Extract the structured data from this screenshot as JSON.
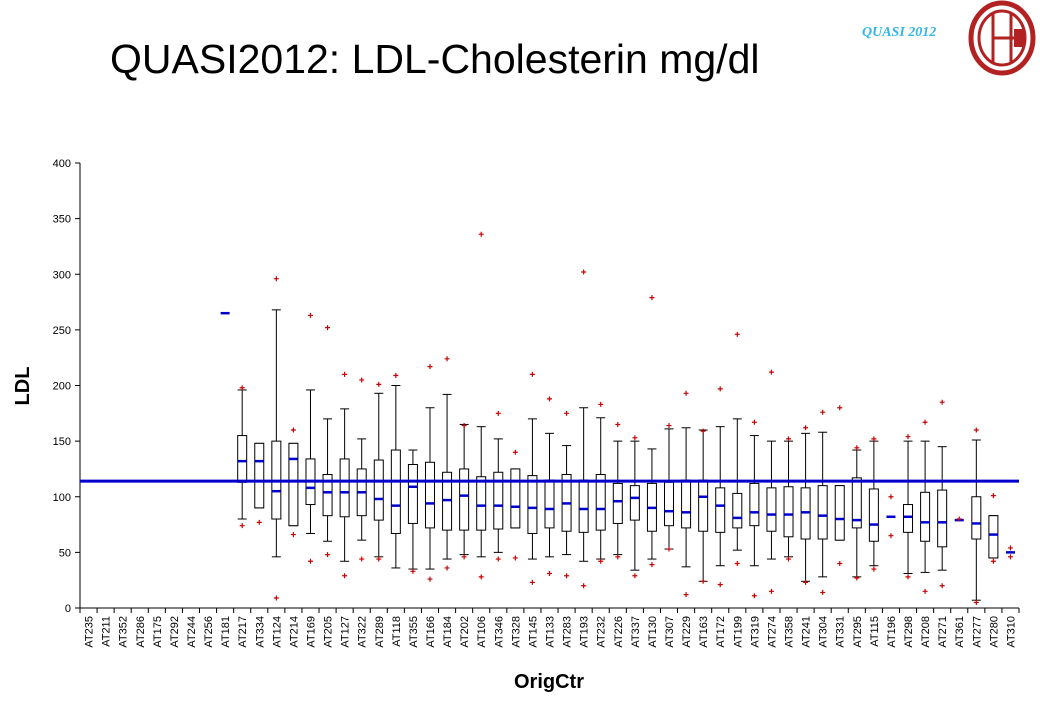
{
  "slide": {
    "title": "QUASI2012: LDL-Cholesterin mg/dl",
    "brand_text": "QUASI 2012"
  },
  "colors": {
    "box": "#000000",
    "median": "#0000cc",
    "reference_line": "#0000cc",
    "outlier": "#cc0000",
    "background": "#ffffff"
  },
  "chart_data": {
    "type": "boxplot",
    "ylabel": "LDL",
    "xlabel": "OrigCtr",
    "ylim": [
      0,
      400
    ],
    "yticks": [
      0,
      50,
      100,
      150,
      200,
      250,
      300,
      350,
      400
    ],
    "reference_line": 114,
    "grid": false,
    "categories": [
      "AT235",
      "AT211",
      "AT352",
      "AT286",
      "AT175",
      "AT292",
      "AT244",
      "AT256",
      "AT181",
      "AT217",
      "AT334",
      "AT124",
      "AT214",
      "AT169",
      "AT205",
      "AT127",
      "AT322",
      "AT289",
      "AT118",
      "AT355",
      "AT166",
      "AT184",
      "AT202",
      "AT106",
      "AT346",
      "AT328",
      "AT145",
      "AT133",
      "AT283",
      "AT193",
      "AT232",
      "AT226",
      "AT337",
      "AT130",
      "AT307",
      "AT229",
      "AT163",
      "AT172",
      "AT199",
      "AT319",
      "AT274",
      "AT358",
      "AT241",
      "AT304",
      "AT331",
      "AT295",
      "AT115",
      "AT196",
      "AT298",
      "AT208",
      "AT271",
      "AT361",
      "AT277",
      "AT280",
      "AT310"
    ],
    "series": [
      null,
      null,
      null,
      null,
      null,
      null,
      null,
      null,
      {
        "median": 265
      },
      {
        "min": 80,
        "q1": 113,
        "median": 132,
        "q3": 155,
        "max": 196,
        "outliers": [
          198,
          74
        ]
      },
      {
        "min": 90,
        "q1": 90,
        "median": 132,
        "q3": 148,
        "max": 148,
        "outliers": [
          77
        ]
      },
      {
        "min": 46,
        "q1": 80,
        "median": 105,
        "q3": 150,
        "max": 268,
        "outliers": [
          296,
          9
        ]
      },
      {
        "min": 74,
        "q1": 74,
        "median": 134,
        "q3": 148,
        "max": 148,
        "outliers": [
          160,
          66
        ]
      },
      {
        "min": 67,
        "q1": 93,
        "median": 108,
        "q3": 134,
        "max": 196,
        "outliers": [
          263,
          42
        ]
      },
      {
        "min": 60,
        "q1": 83,
        "median": 104,
        "q3": 120,
        "max": 170,
        "outliers": [
          252,
          48
        ]
      },
      {
        "min": 42,
        "q1": 82,
        "median": 104,
        "q3": 134,
        "max": 179,
        "outliers": [
          210,
          29
        ]
      },
      {
        "min": 61,
        "q1": 83,
        "median": 104,
        "q3": 125,
        "max": 152,
        "outliers": [
          205,
          44
        ]
      },
      {
        "min": 46,
        "q1": 79,
        "median": 98,
        "q3": 133,
        "max": 193,
        "outliers": [
          201,
          44
        ]
      },
      {
        "min": 36,
        "q1": 67,
        "median": 92,
        "q3": 142,
        "max": 200,
        "outliers": [
          209
        ]
      },
      {
        "min": 35,
        "q1": 76,
        "median": 109,
        "q3": 129,
        "max": 142,
        "outliers": [
          33
        ]
      },
      {
        "min": 35,
        "q1": 72,
        "median": 94,
        "q3": 131,
        "max": 180,
        "outliers": [
          217,
          26
        ]
      },
      {
        "min": 44,
        "q1": 70,
        "median": 97,
        "q3": 122,
        "max": 192,
        "outliers": [
          224,
          36
        ]
      },
      {
        "min": 48,
        "q1": 70,
        "median": 101,
        "q3": 125,
        "max": 165,
        "outliers": [
          164,
          46
        ]
      },
      {
        "min": 46,
        "q1": 70,
        "median": 92,
        "q3": 118,
        "max": 163,
        "outliers": [
          336,
          28
        ]
      },
      {
        "min": 50,
        "q1": 71,
        "median": 92,
        "q3": 122,
        "max": 152,
        "outliers": [
          175,
          44
        ]
      },
      {
        "min": 72,
        "q1": 72,
        "median": 91,
        "q3": 125,
        "max": 125,
        "outliers": [
          140,
          45
        ]
      },
      {
        "min": 44,
        "q1": 67,
        "median": 90,
        "q3": 119,
        "max": 170,
        "outliers": [
          210,
          23
        ]
      },
      {
        "min": 46,
        "q1": 72,
        "median": 89,
        "q3": 115,
        "max": 157,
        "outliers": [
          188,
          31
        ]
      },
      {
        "min": 48,
        "q1": 69,
        "median": 94,
        "q3": 120,
        "max": 146,
        "outliers": [
          175,
          29
        ]
      },
      {
        "min": 42,
        "q1": 68,
        "median": 89,
        "q3": 115,
        "max": 180,
        "outliers": [
          302,
          20
        ]
      },
      {
        "min": 44,
        "q1": 70,
        "median": 89,
        "q3": 120,
        "max": 171,
        "outliers": [
          183,
          42
        ]
      },
      {
        "min": 48,
        "q1": 76,
        "median": 96,
        "q3": 112,
        "max": 150,
        "outliers": [
          165,
          46
        ]
      },
      {
        "min": 34,
        "q1": 79,
        "median": 99,
        "q3": 110,
        "max": 150,
        "outliers": [
          153,
          29
        ]
      },
      {
        "min": 44,
        "q1": 69,
        "median": 90,
        "q3": 112,
        "max": 143,
        "outliers": [
          279,
          39
        ]
      },
      {
        "min": 53,
        "q1": 74,
        "median": 87,
        "q3": 113,
        "max": 161,
        "outliers": [
          164,
          53
        ]
      },
      {
        "min": 37,
        "q1": 72,
        "median": 86,
        "q3": 115,
        "max": 162,
        "outliers": [
          193,
          12
        ]
      },
      {
        "min": 24,
        "q1": 69,
        "median": 100,
        "q3": 115,
        "max": 160,
        "outliers": [
          159,
          24
        ]
      },
      {
        "min": 38,
        "q1": 68,
        "median": 92,
        "q3": 108,
        "max": 163,
        "outliers": [
          197,
          21
        ]
      },
      {
        "min": 52,
        "q1": 72,
        "median": 81,
        "q3": 103,
        "max": 170,
        "outliers": [
          246,
          40
        ]
      },
      {
        "min": 38,
        "q1": 74,
        "median": 86,
        "q3": 112,
        "max": 155,
        "outliers": [
          167,
          11
        ]
      },
      {
        "min": 44,
        "q1": 69,
        "median": 84,
        "q3": 108,
        "max": 150,
        "outliers": [
          212,
          15
        ]
      },
      {
        "min": 46,
        "q1": 64,
        "median": 84,
        "q3": 109,
        "max": 150,
        "outliers": [
          152,
          44
        ]
      },
      {
        "min": 24,
        "q1": 62,
        "median": 86,
        "q3": 108,
        "max": 157,
        "outliers": [
          162,
          23
        ]
      },
      {
        "min": 28,
        "q1": 62,
        "median": 83,
        "q3": 110,
        "max": 158,
        "outliers": [
          176,
          14
        ]
      },
      {
        "min": 61,
        "q1": 61,
        "median": 80,
        "q3": 110,
        "max": 110,
        "outliers": [
          180,
          40
        ]
      },
      {
        "min": 28,
        "q1": 72,
        "median": 79,
        "q3": 117,
        "max": 142,
        "outliers": [
          144,
          27
        ]
      },
      {
        "min": 38,
        "q1": 60,
        "median": 75,
        "q3": 107,
        "max": 150,
        "outliers": [
          152,
          35
        ]
      },
      {
        "median": 82,
        "outliers": [
          100,
          65
        ]
      },
      {
        "min": 31,
        "q1": 68,
        "median": 82,
        "q3": 93,
        "max": 150,
        "outliers": [
          154,
          28
        ]
      },
      {
        "min": 32,
        "q1": 60,
        "median": 77,
        "q3": 104,
        "max": 150,
        "outliers": [
          167,
          15
        ]
      },
      {
        "min": 34,
        "q1": 55,
        "median": 77,
        "q3": 106,
        "max": 145,
        "outliers": [
          185,
          20
        ]
      },
      {
        "median": 79,
        "outliers": [
          80
        ]
      },
      {
        "min": 7,
        "q1": 62,
        "median": 76,
        "q3": 100,
        "max": 151,
        "outliers": [
          160,
          5
        ]
      },
      {
        "min": 45,
        "q1": 45,
        "median": 66,
        "q3": 83,
        "max": 83,
        "outliers": [
          101,
          42
        ]
      },
      {
        "median": 50,
        "outliers": [
          54,
          46
        ]
      }
    ]
  }
}
